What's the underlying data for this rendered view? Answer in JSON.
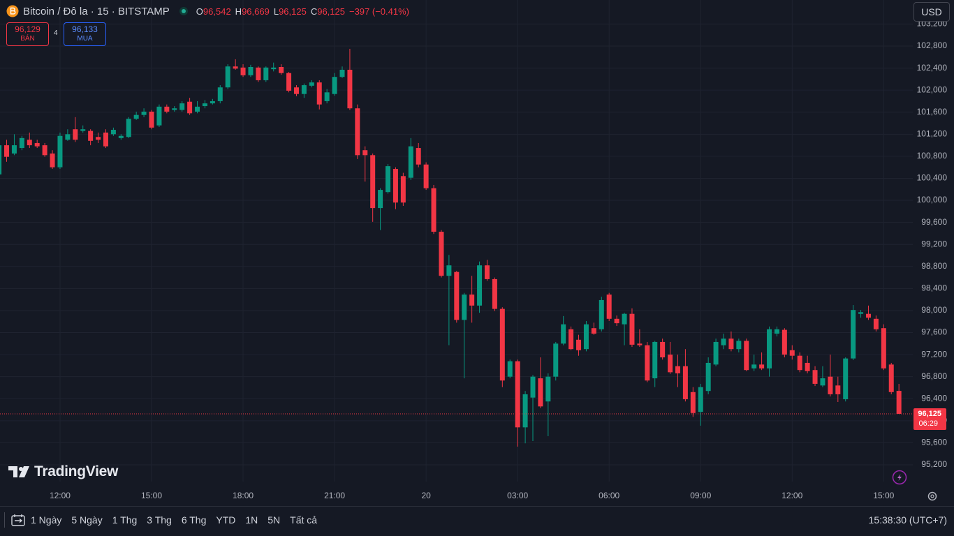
{
  "chart_data": {
    "type": "candlestick",
    "up_color": "#089981",
    "down_color": "#f23645",
    "grid": true,
    "categories": [
      null,
      null,
      null,
      null,
      null,
      null,
      null,
      null,
      "12:00",
      null,
      null,
      null,
      null,
      null,
      null,
      null,
      null,
      null,
      null,
      null,
      "15:00",
      null,
      null,
      null,
      null,
      null,
      null,
      null,
      null,
      null,
      null,
      null,
      "18:00",
      null,
      null,
      null,
      null,
      null,
      null,
      null,
      null,
      null,
      null,
      null,
      "21:00",
      null,
      null,
      null,
      null,
      null,
      null,
      null,
      null,
      null,
      null,
      null,
      "20",
      null,
      null,
      null,
      null,
      null,
      null,
      null,
      null,
      null,
      null,
      null,
      "03:00",
      null,
      null,
      null,
      null,
      null,
      null,
      null,
      null,
      null,
      null,
      null,
      "06:00",
      null,
      null,
      null,
      null,
      null,
      null,
      null,
      null,
      null,
      null,
      null,
      "09:00",
      null,
      null,
      null,
      null,
      null,
      null,
      null,
      null,
      null,
      null,
      null,
      "12:00",
      null,
      null,
      null,
      null,
      null,
      null,
      null,
      null,
      null,
      null,
      null,
      "15:00",
      null,
      null
    ],
    "open": [
      100470,
      101000,
      100850,
      100950,
      101100,
      101040,
      101000,
      100850,
      100600,
      101100,
      101290,
      101260,
      101260,
      101150,
      101230,
      101200,
      101130,
      101150,
      101480,
      101550,
      101610,
      101360,
      101700,
      101640,
      101640,
      101790,
      101610,
      101710,
      101760,
      101800,
      102050,
      102430,
      102410,
      102270,
      102410,
      102180,
      102380,
      102420,
      102310,
      102050,
      101930,
      102080,
      102140,
      101800,
      101930,
      102240,
      102370,
      101670,
      100910,
      100820,
      99860,
      100150,
      100570,
      100440,
      100410,
      100950,
      100650,
      100220,
      99430,
      98630,
      98700,
      97830,
      98290,
      98090,
      98820,
      98570,
      98030,
      96800,
      97080,
      95880,
      96420,
      96770,
      96350,
      96800,
      97400,
      97660,
      97470,
      97300,
      97680,
      97660,
      98290,
      97850,
      97750,
      97940,
      97400,
      97370,
      96770,
      97430,
      97200,
      96990,
      96990,
      96520,
      96160,
      96540,
      97020,
      97370,
      97490,
      97300,
      97450,
      96950,
      97020,
      96950,
      97580,
      97650,
      97280,
      97180,
      97050,
      96920,
      96640,
      96800,
      96640,
      96390,
      97130,
      97940,
      97940,
      97850,
      97680,
      97020,
      96542
    ],
    "high": [
      101100,
      101100,
      101200,
      101170,
      101230,
      101100,
      101040,
      100910,
      101230,
      101290,
      101510,
      101360,
      101290,
      101230,
      101290,
      101320,
      101200,
      101510,
      101610,
      101670,
      101640,
      101740,
      101740,
      101710,
      101800,
      101860,
      101800,
      101820,
      101840,
      102090,
      102470,
      102560,
      102470,
      102460,
      102430,
      102430,
      102500,
      102470,
      102330,
      102090,
      102120,
      102180,
      102180,
      102020,
      102310,
      102430,
      102750,
      101740,
      100980,
      100850,
      100220,
      100660,
      100600,
      100500,
      101130,
      101040,
      100690,
      100280,
      99460,
      99010,
      98720,
      98320,
      98630,
      98890,
      98920,
      98600,
      98060,
      97110,
      97110,
      96540,
      96830,
      97150,
      96860,
      97430,
      97900,
      97710,
      97560,
      97810,
      97780,
      98250,
      98320,
      97910,
      97960,
      98040,
      97660,
      97430,
      97450,
      97490,
      97430,
      97200,
      97300,
      96610,
      96670,
      97150,
      97490,
      97580,
      97620,
      97490,
      97490,
      97200,
      97240,
      97710,
      97710,
      97680,
      97370,
      97240,
      97180,
      96990,
      96990,
      97200,
      96800,
      97150,
      98100,
      98010,
      98090,
      97910,
      97750,
      97050,
      96669
    ],
    "low": [
      100410,
      100700,
      100820,
      100910,
      100950,
      100950,
      100790,
      100570,
      100570,
      101080,
      101060,
      101230,
      101000,
      101040,
      100950,
      101170,
      101100,
      101130,
      101460,
      101510,
      101290,
      101330,
      101580,
      101610,
      101610,
      101550,
      101580,
      101670,
      101740,
      101760,
      102020,
      102370,
      102240,
      102240,
      102150,
      102150,
      102340,
      102280,
      101960,
      101890,
      101860,
      102050,
      101650,
      101760,
      101900,
      102220,
      101640,
      100750,
      100340,
      99610,
      99460,
      100120,
      99840,
      99900,
      100370,
      100600,
      100190,
      99390,
      98600,
      97370,
      97780,
      96770,
      97780,
      97960,
      98540,
      97990,
      96610,
      96770,
      95530,
      95590,
      95630,
      96230,
      95720,
      96730,
      97370,
      97280,
      97180,
      97260,
      97560,
      97620,
      97810,
      97720,
      97370,
      97340,
      97340,
      96700,
      96610,
      97110,
      96850,
      96610,
      96350,
      96070,
      95910,
      96480,
      96990,
      97300,
      97260,
      97240,
      96900,
      96900,
      96920,
      96800,
      97530,
      97150,
      97110,
      96880,
      96860,
      96630,
      96610,
      96440,
      96340,
      96350,
      97100,
      97870,
      97830,
      97620,
      96920,
      96480,
      96125
    ],
    "close": [
      101000,
      100790,
      101000,
      101130,
      101000,
      100980,
      100820,
      100600,
      101170,
      101200,
      101100,
      101290,
      101080,
      101100,
      100980,
      101280,
      101170,
      101480,
      101550,
      101610,
      101320,
      101700,
      101610,
      101670,
      101760,
      101580,
      101700,
      101760,
      101800,
      102050,
      102430,
      102390,
      102270,
      102420,
      102180,
      102410,
      102410,
      102310,
      101990,
      101930,
      102090,
      102140,
      101740,
      101960,
      102240,
      102370,
      101670,
      100820,
      100820,
      99860,
      100190,
      100620,
      99960,
      99960,
      100980,
      100650,
      100220,
      99430,
      98630,
      98820,
      97830,
      98290,
      98090,
      98820,
      98570,
      98030,
      96730,
      97080,
      95880,
      96480,
      96800,
      96260,
      96800,
      97400,
      97750,
      97300,
      97280,
      97750,
      97580,
      98190,
      97850,
      97770,
      97940,
      97380,
      97370,
      96730,
      97430,
      97150,
      96880,
      96860,
      96390,
      96140,
      96610,
      97050,
      97430,
      97490,
      97300,
      97450,
      96920,
      97020,
      96950,
      97660,
      97660,
      97200,
      97180,
      96920,
      96900,
      96670,
      96770,
      96480,
      96480,
      97130,
      98010,
      97970,
      97870,
      97660,
      96950,
      96520,
      96125
    ],
    "ylim": [
      94896,
      103636
    ],
    "yticks": [
      {
        "value": 95200,
        "label": "95,200"
      },
      {
        "value": 95600,
        "label": "95,600"
      },
      {
        "value": 96000,
        "label": "96,000"
      },
      {
        "value": 96400,
        "label": "96,400"
      },
      {
        "value": 96800,
        "label": "96,800"
      },
      {
        "value": 97200,
        "label": "97,200"
      },
      {
        "value": 97600,
        "label": "97,600"
      },
      {
        "value": 98000,
        "label": "98,000"
      },
      {
        "value": 98400,
        "label": "98,400"
      },
      {
        "value": 98800,
        "label": "98,800"
      },
      {
        "value": 99200,
        "label": "99,200"
      },
      {
        "value": 99600,
        "label": "99,600"
      },
      {
        "value": 100000,
        "label": "100,000"
      },
      {
        "value": 100400,
        "label": "100,400"
      },
      {
        "value": 100800,
        "label": "100,800"
      },
      {
        "value": 101200,
        "label": "101,200"
      },
      {
        "value": 101600,
        "label": "101,600"
      },
      {
        "value": 102000,
        "label": "102,000"
      },
      {
        "value": 102400,
        "label": "102,400"
      },
      {
        "value": 102800,
        "label": "102,800"
      },
      {
        "value": 103200,
        "label": "103,200"
      }
    ],
    "last_price": {
      "value": 96125,
      "label": "96,125"
    },
    "countdown": "06:29"
  },
  "legend": {
    "symbol": "Bitcoin / Đô la · 15 · BITSTAMP",
    "ohlc": [
      {
        "key": "O",
        "value": "96,542"
      },
      {
        "key": "H",
        "value": "96,669"
      },
      {
        "key": "L",
        "value": "96,125"
      },
      {
        "key": "C",
        "value": "96,125"
      }
    ],
    "change": "−397 (−0.41%)"
  },
  "quote": {
    "sell_price": "96,129",
    "sell_label": "BÁN",
    "spread": "4",
    "buy_price": "96,133",
    "buy_label": "MUA"
  },
  "currency": "USD",
  "brand": "TradingView",
  "toolbar": {
    "ranges": [
      "1 Ngày",
      "5 Ngày",
      "1 Thg",
      "3 Thg",
      "6 Thg",
      "YTD",
      "1N",
      "5N",
      "Tất cả"
    ],
    "clock": "15:38:30 (UTC+7)"
  }
}
